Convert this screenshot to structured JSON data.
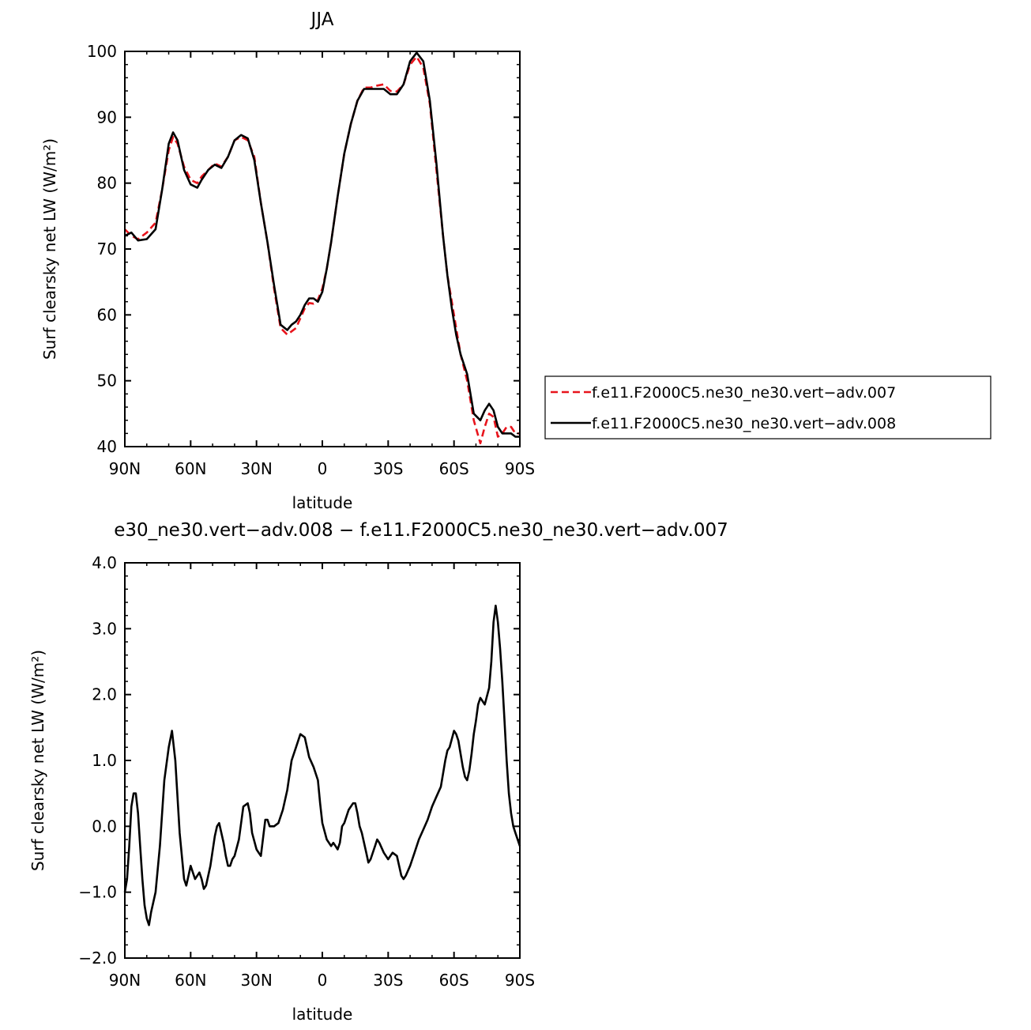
{
  "chart_data": [
    {
      "type": "line",
      "title": "JJA",
      "xlabel": "latitude",
      "ylabel": "Surf clearsky net LW (W/m²)",
      "xlim": [
        90,
        -90
      ],
      "ylim": [
        40,
        100
      ],
      "x_tick_values": [
        90,
        60,
        30,
        0,
        -30,
        -60,
        -90
      ],
      "x_tick_labels": [
        "90N",
        "60N",
        "30N",
        "0",
        "30S",
        "60S",
        "90S"
      ],
      "y_tick_values": [
        40,
        50,
        60,
        70,
        80,
        90,
        100
      ],
      "y_tick_labels": [
        "40",
        "50",
        "60",
        "70",
        "80",
        "90",
        "100"
      ],
      "legend_position": "right",
      "series": [
        {
          "name": "f.e11.F2000C5.ne30_ne30.vert−adv.007",
          "color": "#e8141c",
          "dash": "dashed",
          "x": [
            90,
            87,
            84,
            80,
            76,
            73,
            70,
            68,
            66,
            63,
            60,
            57,
            55,
            52,
            49,
            46,
            43,
            40,
            37,
            34,
            31,
            28,
            25,
            22,
            19,
            16,
            14,
            12,
            10,
            8,
            6,
            4,
            2,
            0,
            -2,
            -4,
            -7,
            -10,
            -13,
            -16,
            -19,
            -22,
            -25,
            -28,
            -31,
            -34,
            -37,
            -40,
            -43,
            -46,
            -49,
            -52,
            -55,
            -57,
            -59,
            -61,
            -63,
            -66,
            -69,
            -72,
            -74,
            -76,
            -78,
            -80,
            -82,
            -84,
            -86,
            -88,
            -90
          ],
          "values": [
            73.0,
            72.0,
            71.5,
            72.5,
            74.0,
            79.0,
            85.0,
            87.0,
            86.0,
            82.5,
            80.5,
            80.0,
            81.0,
            82.0,
            83.0,
            82.5,
            84.0,
            86.5,
            87.0,
            86.5,
            84.0,
            77.0,
            71.0,
            64.0,
            58.0,
            57.0,
            57.5,
            58.0,
            59.5,
            61.0,
            61.8,
            61.7,
            62.3,
            64.0,
            67.0,
            71.0,
            78.0,
            84.5,
            89.0,
            92.5,
            94.5,
            94.5,
            94.8,
            95.0,
            94.0,
            93.9,
            95.0,
            98.0,
            99.2,
            97.5,
            92.0,
            82.0,
            72.0,
            66.0,
            62.0,
            58.0,
            54.0,
            50.0,
            44.0,
            40.5,
            43.0,
            45.0,
            44.5,
            41.5,
            42.0,
            43.0,
            43.0,
            42.0,
            42.0
          ]
        },
        {
          "name": "f.e11.F2000C5.ne30_ne30.vert−adv.008",
          "color": "#000000",
          "dash": "solid",
          "x": [
            90,
            87,
            84,
            80,
            76,
            73,
            70,
            68,
            66,
            63,
            60,
            57,
            55,
            52,
            49,
            46,
            43,
            40,
            37,
            34,
            31,
            28,
            25,
            22,
            19,
            16,
            14,
            12,
            10,
            8,
            6,
            4,
            2,
            0,
            -2,
            -4,
            -7,
            -10,
            -13,
            -16,
            -19,
            -22,
            -25,
            -28,
            -31,
            -34,
            -37,
            -40,
            -43,
            -46,
            -49,
            -52,
            -55,
            -57,
            -59,
            -61,
            -63,
            -66,
            -69,
            -72,
            -74,
            -76,
            -78,
            -80,
            -82,
            -84,
            -86,
            -88,
            -90
          ],
          "values": [
            72.0,
            72.5,
            71.3,
            71.5,
            73.0,
            79.0,
            86.0,
            87.7,
            86.5,
            82.0,
            79.8,
            79.3,
            80.5,
            82.0,
            82.8,
            82.3,
            84.0,
            86.5,
            87.3,
            86.8,
            83.5,
            77.0,
            71.0,
            64.5,
            58.5,
            57.7,
            58.5,
            59.0,
            60.0,
            61.5,
            62.5,
            62.5,
            62.0,
            63.5,
            67.0,
            71.0,
            78.0,
            84.5,
            89.0,
            92.5,
            94.3,
            94.3,
            94.3,
            94.3,
            93.5,
            93.5,
            95.0,
            98.5,
            99.8,
            98.5,
            92.5,
            83.0,
            72.0,
            66.0,
            61.0,
            57.0,
            54.0,
            51.0,
            45.0,
            44.0,
            45.5,
            46.5,
            45.5,
            43.0,
            42.0,
            42.0,
            42.0,
            41.5,
            41.5
          ]
        }
      ]
    },
    {
      "type": "line",
      "title": "e30_ne30.vert−adv.008 − f.e11.F2000C5.ne30_ne30.vert−adv.007",
      "xlabel": "latitude",
      "ylabel": "Surf clearsky net LW (W/m²)",
      "xlim": [
        90,
        -90
      ],
      "ylim": [
        -2.0,
        4.0
      ],
      "x_tick_values": [
        90,
        60,
        30,
        0,
        -30,
        -60,
        -90
      ],
      "x_tick_labels": [
        "90N",
        "60N",
        "30N",
        "0",
        "30S",
        "60S",
        "90S"
      ],
      "y_tick_values": [
        -2.0,
        -1.0,
        0.0,
        1.0,
        2.0,
        3.0,
        4.0
      ],
      "y_tick_labels": [
        "−2.0",
        "−1.0",
        "0.0",
        "1.0",
        "2.0",
        "3.0",
        "4.0"
      ],
      "series": [
        {
          "color": "#000000",
          "dash": "solid",
          "x": [
            90,
            89,
            88,
            87,
            86,
            85,
            84,
            83,
            82,
            81,
            80,
            79,
            78,
            76,
            74,
            72,
            70,
            68.5,
            67,
            65,
            63,
            62,
            61,
            60,
            59,
            58,
            57,
            56,
            55,
            54,
            53,
            51,
            49,
            48,
            47,
            46,
            45,
            44,
            43,
            42,
            41,
            40,
            38,
            36,
            34,
            33,
            32,
            30,
            29,
            28,
            26,
            25,
            24,
            23,
            22,
            20,
            18,
            16,
            14,
            12,
            10,
            8,
            6,
            4,
            2,
            1,
            0,
            -2,
            -4,
            -5,
            -6,
            -7,
            -8,
            -9,
            -10,
            -12,
            -14,
            -15,
            -16,
            -17,
            -18,
            -20,
            -21,
            -22,
            -24,
            -25,
            -26,
            -28,
            -30,
            -31,
            -32,
            -34,
            -36,
            -37,
            -38,
            -40,
            -41,
            -42,
            -44,
            -46,
            -48,
            -50,
            -52,
            -54,
            -56,
            -57,
            -58,
            -60,
            -61,
            -62,
            -64,
            -65,
            -66,
            -67,
            -68,
            -69,
            -70,
            -71,
            -72,
            -73,
            -74,
            -76,
            -77,
            -78,
            -79,
            -80,
            -81,
            -82,
            -83,
            -84,
            -85,
            -86,
            -87,
            -88,
            -89,
            -90
          ],
          "values": [
            -1.0,
            -0.8,
            -0.3,
            0.3,
            0.5,
            0.5,
            0.2,
            -0.3,
            -0.8,
            -1.2,
            -1.4,
            -1.5,
            -1.3,
            -1.0,
            -0.3,
            0.7,
            1.2,
            1.45,
            1.0,
            -0.1,
            -0.8,
            -0.9,
            -0.75,
            -0.6,
            -0.7,
            -0.8,
            -0.75,
            -0.7,
            -0.8,
            -0.95,
            -0.9,
            -0.6,
            -0.15,
            0.0,
            0.05,
            -0.1,
            -0.25,
            -0.45,
            -0.6,
            -0.6,
            -0.5,
            -0.45,
            -0.2,
            0.3,
            0.35,
            0.2,
            -0.1,
            -0.35,
            -0.4,
            -0.45,
            0.1,
            0.1,
            0.0,
            0.0,
            0.0,
            0.05,
            0.25,
            0.55,
            1.0,
            1.2,
            1.4,
            1.35,
            1.05,
            0.9,
            0.7,
            0.35,
            0.05,
            -0.2,
            -0.3,
            -0.25,
            -0.3,
            -0.35,
            -0.25,
            0.0,
            0.05,
            0.25,
            0.35,
            0.35,
            0.2,
            0.0,
            -0.1,
            -0.4,
            -0.55,
            -0.5,
            -0.3,
            -0.2,
            -0.25,
            -0.4,
            -0.5,
            -0.45,
            -0.4,
            -0.45,
            -0.75,
            -0.8,
            -0.75,
            -0.6,
            -0.5,
            -0.4,
            -0.2,
            -0.05,
            0.1,
            0.3,
            0.45,
            0.6,
            1.0,
            1.15,
            1.2,
            1.45,
            1.4,
            1.3,
            0.9,
            0.75,
            0.7,
            0.85,
            1.1,
            1.4,
            1.6,
            1.85,
            1.95,
            1.9,
            1.85,
            2.1,
            2.5,
            3.1,
            3.35,
            3.1,
            2.7,
            2.2,
            1.6,
            1.0,
            0.5,
            0.2,
            0.0,
            -0.1,
            -0.2,
            -0.3
          ]
        }
      ]
    }
  ]
}
